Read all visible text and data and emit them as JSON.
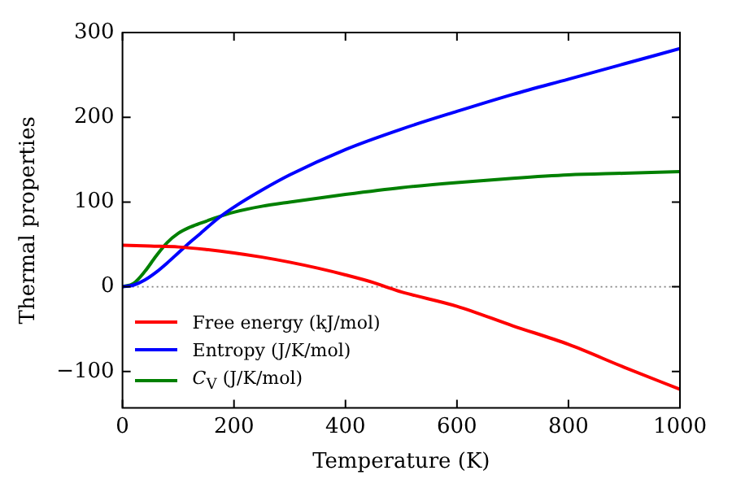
{
  "chart_data": {
    "type": "line",
    "xlabel": "Temperature (K)",
    "ylabel": "Thermal properties",
    "xlim": [
      0,
      1000
    ],
    "xticks": [
      0,
      200,
      400,
      600,
      800,
      1000
    ],
    "ylim": [
      -143,
      300
    ],
    "yticks": [
      -100,
      0,
      100,
      200,
      300
    ],
    "grid": false,
    "legend": "bottom left",
    "marker": "none",
    "line_style": "solid",
    "ref_lines": [
      {
        "axis": "y",
        "value": 0,
        "color": "#808080",
        "line_style": "dotted"
      }
    ],
    "series": [
      {
        "name": "Free energy (kJ/mol)",
        "color": "#ff0000",
        "x": [
          0,
          50,
          100,
          150,
          200,
          250,
          300,
          350,
          400,
          450,
          472,
          500,
          600,
          700,
          800,
          900,
          1000
        ],
        "values": [
          49,
          48,
          47,
          44,
          40,
          35,
          29,
          22,
          14,
          5,
          0,
          -6,
          -23,
          -46,
          -68,
          -95,
          -121
        ]
      },
      {
        "name": "Entropy (J/K/mol)",
        "color": "#0000ff",
        "x": [
          0,
          20,
          40,
          60,
          80,
          100,
          120,
          140,
          170,
          200,
          250,
          300,
          400,
          500,
          600,
          700,
          800,
          900,
          1000
        ],
        "values": [
          0,
          2,
          8,
          17,
          28,
          40,
          52,
          63,
          80,
          94,
          114,
          132,
          162,
          186,
          207,
          227,
          245,
          263,
          281
        ]
      },
      {
        "name": "C$_{V}$ (J/K/mol)",
        "color": "#008000",
        "x": [
          0,
          20,
          40,
          60,
          80,
          100,
          120,
          140,
          170,
          200,
          250,
          300,
          400,
          500,
          600,
          700,
          800,
          900,
          1000
        ],
        "values": [
          0,
          4,
          18,
          36,
          52,
          63,
          70,
          75,
          82,
          88,
          95,
          100,
          109,
          117,
          123,
          128,
          132,
          134,
          136
        ]
      }
    ]
  }
}
